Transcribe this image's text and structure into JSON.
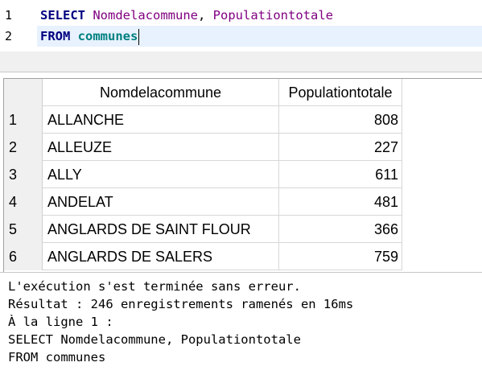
{
  "editor": {
    "line_numbers": [
      "1",
      "2"
    ],
    "line1": {
      "keyword": "SELECT",
      "col1": "Nomdelacommune",
      "sep": ", ",
      "col2": "Populationtotale"
    },
    "line2": {
      "keyword": "FROM",
      "table": "communes"
    }
  },
  "grid": {
    "columns": [
      "Nomdelacommune",
      "Populationtotale"
    ],
    "rows": [
      {
        "num": "1",
        "name": "ALLANCHE",
        "pop": "808"
      },
      {
        "num": "2",
        "name": "ALLEUZE",
        "pop": "227"
      },
      {
        "num": "3",
        "name": "ALLY",
        "pop": "611"
      },
      {
        "num": "4",
        "name": "ANDELAT",
        "pop": "481"
      },
      {
        "num": "5",
        "name": "ANGLARDS DE SAINT FLOUR",
        "pop": "366"
      },
      {
        "num": "6",
        "name": "ANGLARDS DE SALERS",
        "pop": "759"
      }
    ]
  },
  "messages": [
    "L'exécution s'est terminée sans erreur.",
    "Résultat : 246 enregistrements ramenés en 16ms",
    "À la ligne 1 :",
    "SELECT Nomdelacommune, Populationtotale",
    "FROM communes"
  ],
  "colors": {
    "keyword": "#000080",
    "column": "#800080",
    "table": "#008080",
    "current_line": "#e8f2fe"
  }
}
